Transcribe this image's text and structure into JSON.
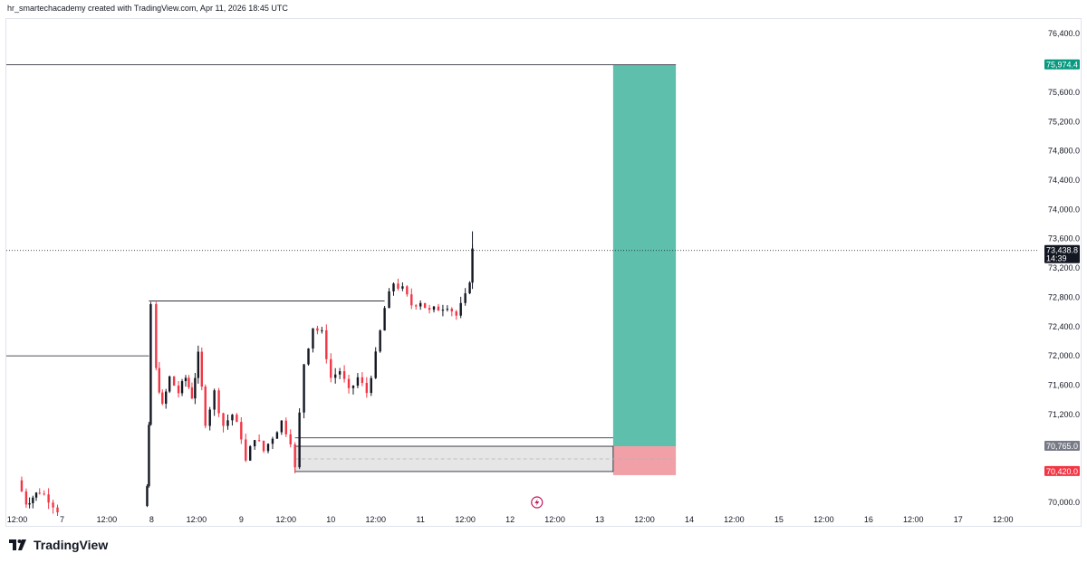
{
  "header": {
    "caption": "hr_smartechacademy created with TradingView.com, Apr 11, 2026 18:45 UTC"
  },
  "brand": {
    "name": "TradingView",
    "icon": "tradingview-logo-icon"
  },
  "colors": {
    "up": "#131722",
    "down": "#f23645",
    "target": "#5fbfad",
    "stop": "#f0a0a6",
    "grid_label": "#131722"
  },
  "chart_data": {
    "type": "candlestick",
    "title": "",
    "xlabel": "",
    "ylabel": "",
    "ylim": [
      69900,
      76600
    ],
    "y_ticks": [
      "76,400.0",
      "75,600.0",
      "75,200.0",
      "74,800.0",
      "74,400.0",
      "74,000.0",
      "73,600.0",
      "73,200.0",
      "72,800.0",
      "72,400.0",
      "72,000.0",
      "71,600.0",
      "71,200.0",
      "70,000.0"
    ],
    "y_tick_values": [
      76400,
      75600,
      75200,
      74800,
      74400,
      74000,
      73600,
      73200,
      72800,
      72400,
      72000,
      71600,
      71200,
      70000
    ],
    "x_range_days": [
      6.5,
      17.7
    ],
    "x_ticks": [
      {
        "label": "12:00",
        "day": 6.5
      },
      {
        "label": "7",
        "day": 7.0
      },
      {
        "label": "12:00",
        "day": 7.5
      },
      {
        "label": "8",
        "day": 8.0
      },
      {
        "label": "12:00",
        "day": 8.5
      },
      {
        "label": "9",
        "day": 9.0
      },
      {
        "label": "12:00",
        "day": 9.5
      },
      {
        "label": "10",
        "day": 10.0
      },
      {
        "label": "12:00",
        "day": 10.5
      },
      {
        "label": "11",
        "day": 11.0
      },
      {
        "label": "12:00",
        "day": 11.5
      },
      {
        "label": "12",
        "day": 12.0
      },
      {
        "label": "12:00",
        "day": 12.5
      },
      {
        "label": "13",
        "day": 13.0
      },
      {
        "label": "12:00",
        "day": 13.5
      },
      {
        "label": "14",
        "day": 14.0
      },
      {
        "label": "12:00",
        "day": 14.5
      },
      {
        "label": "15",
        "day": 15.0
      },
      {
        "label": "12:00",
        "day": 15.5
      },
      {
        "label": "16",
        "day": 16.0
      },
      {
        "label": "12:00",
        "day": 16.5
      },
      {
        "label": "17",
        "day": 17.0
      },
      {
        "label": "12:00",
        "day": 17.5
      }
    ],
    "price_path": [
      [
        6.5,
        70300
      ],
      [
        6.6,
        70000
      ],
      [
        6.75,
        70150
      ],
      [
        6.85,
        70050
      ],
      [
        6.95,
        69900
      ],
      [
        7.92,
        69950
      ],
      [
        7.95,
        70200
      ],
      [
        7.97,
        71000
      ],
      [
        7.99,
        72700
      ],
      [
        8.05,
        71800
      ],
      [
        8.12,
        71300
      ],
      [
        8.2,
        71700
      ],
      [
        8.3,
        71500
      ],
      [
        8.38,
        71700
      ],
      [
        8.45,
        71450
      ],
      [
        8.52,
        72000
      ],
      [
        8.6,
        71100
      ],
      [
        8.7,
        71500
      ],
      [
        8.8,
        71050
      ],
      [
        8.9,
        71200
      ],
      [
        9.0,
        70900
      ],
      [
        9.05,
        70550
      ],
      [
        9.15,
        70900
      ],
      [
        9.25,
        70700
      ],
      [
        9.35,
        70900
      ],
      [
        9.45,
        71100
      ],
      [
        9.55,
        70850
      ],
      [
        9.6,
        70450
      ],
      [
        9.65,
        71200
      ],
      [
        9.7,
        71900
      ],
      [
        9.8,
        72400
      ],
      [
        9.9,
        72300
      ],
      [
        10.0,
        71700
      ],
      [
        10.1,
        71800
      ],
      [
        10.2,
        71500
      ],
      [
        10.3,
        71700
      ],
      [
        10.4,
        71500
      ],
      [
        10.5,
        72000
      ],
      [
        10.6,
        72650
      ],
      [
        10.7,
        73000
      ],
      [
        10.8,
        72900
      ],
      [
        10.9,
        72700
      ],
      [
        11.0,
        72750
      ],
      [
        11.1,
        72600
      ],
      [
        11.2,
        72650
      ],
      [
        11.3,
        72700
      ],
      [
        11.4,
        72550
      ],
      [
        11.5,
        72800
      ],
      [
        11.55,
        73050
      ],
      [
        11.58,
        73438.8
      ]
    ],
    "last_price": {
      "value": 73438.8,
      "label": "73,438.8",
      "countdown": "14:39"
    },
    "levels": [
      {
        "name": "target",
        "value": 75974.4,
        "label": "75,974.4"
      },
      {
        "name": "entry",
        "value": 70765.0,
        "label": "70,765.0"
      },
      {
        "name": "stop",
        "value": 70420.0,
        "label": "70,420.0"
      },
      {
        "name": "previous-high",
        "value": 72750
      },
      {
        "name": "previous-level",
        "value": 72000
      },
      {
        "name": "zone-top",
        "value": 70880
      }
    ],
    "position": {
      "start_day": 13.15,
      "end_day": 13.85,
      "entry": 70765.0,
      "target": 75974.4,
      "stop": 70420.0
    },
    "zone": {
      "start_day": 9.6,
      "end_day": 13.15,
      "top": 70765.0,
      "bottom": 70420.0,
      "upper_line": 70880
    },
    "grid": false,
    "legend": "none"
  }
}
